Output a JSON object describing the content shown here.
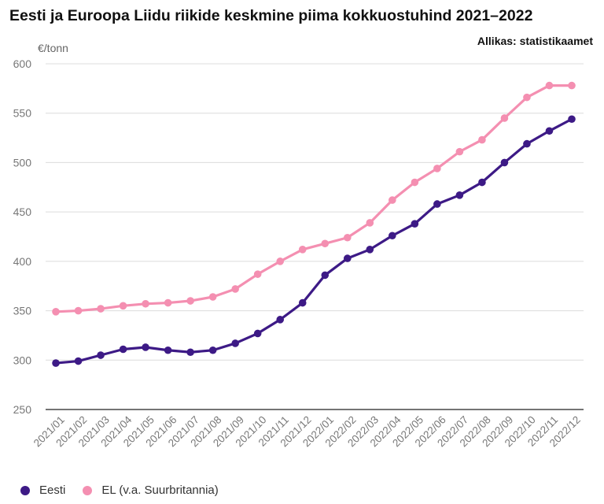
{
  "chart_data": {
    "type": "line",
    "title": "Eesti ja Euroopa Liidu riikide keskmine piima kokkuostuhind 2021–2022",
    "source": "Allikas: statistikaamet",
    "ylabel": "€/tonn",
    "xlabel": "",
    "ylim": [
      250,
      600
    ],
    "yticks": [
      250,
      300,
      350,
      400,
      450,
      500,
      550,
      600
    ],
    "grid": true,
    "legend_position": "bottom-left",
    "categories": [
      "2021/01",
      "2021/02",
      "2021/03",
      "2021/04",
      "2021/05",
      "2021/06",
      "2021/07",
      "2021/08",
      "2021/09",
      "2021/10",
      "2021/11",
      "2021/12",
      "2022/01",
      "2022/02",
      "2022/03",
      "2022/04",
      "2022/05",
      "2022/06",
      "2022/07",
      "2022/08",
      "2022/09",
      "2022/10",
      "2022/11",
      "2022/12"
    ],
    "series": [
      {
        "name": "Eesti",
        "color": "#3d1a86",
        "values": [
          297,
          299,
          305,
          311,
          313,
          310,
          308,
          310,
          317,
          327,
          341,
          358,
          386,
          403,
          412,
          426,
          438,
          458,
          467,
          480,
          500,
          519,
          532,
          544
        ]
      },
      {
        "name": "EL (v.a. Suurbritannia)",
        "color": "#f48fb1",
        "values": [
          349,
          350,
          352,
          355,
          357,
          358,
          360,
          364,
          372,
          387,
          400,
          412,
          418,
          424,
          439,
          462,
          480,
          494,
          511,
          523,
          545,
          566,
          578,
          578
        ]
      }
    ]
  }
}
